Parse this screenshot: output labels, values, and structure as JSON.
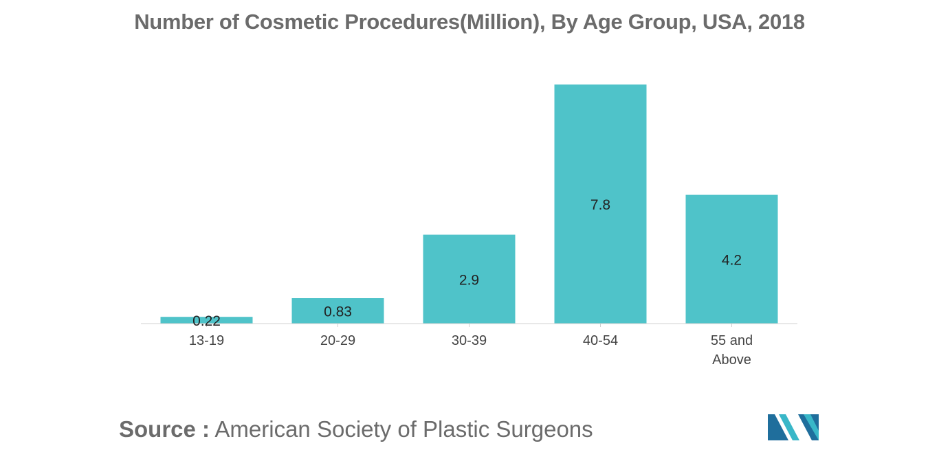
{
  "chart_data": {
    "type": "bar",
    "title": "Number of Cosmetic Procedures(Million), By Age Group, USA, 2018",
    "categories": [
      "13-19",
      "20-29",
      "30-39",
      "40-54",
      "55 and Above"
    ],
    "category_lines": [
      [
        "13-19"
      ],
      [
        "20-29"
      ],
      [
        "30-39"
      ],
      [
        "40-54"
      ],
      [
        "55 and",
        "Above"
      ]
    ],
    "values": [
      0.22,
      0.83,
      2.9,
      7.8,
      4.2
    ],
    "value_labels": [
      "0.22",
      "0.83",
      "2.9",
      "7.8",
      "4.2"
    ],
    "xlabel": "",
    "ylabel": "",
    "ylim": [
      0,
      7.8
    ],
    "grid": false,
    "bar_color": "#4fc3c9"
  },
  "source": {
    "label": "Source :",
    "text": "American Society of Plastic Surgeons"
  },
  "logo": {
    "icon": "mordor-intelligence-logo-icon",
    "colors": [
      "#1f6e9c",
      "#39b7c8"
    ]
  }
}
